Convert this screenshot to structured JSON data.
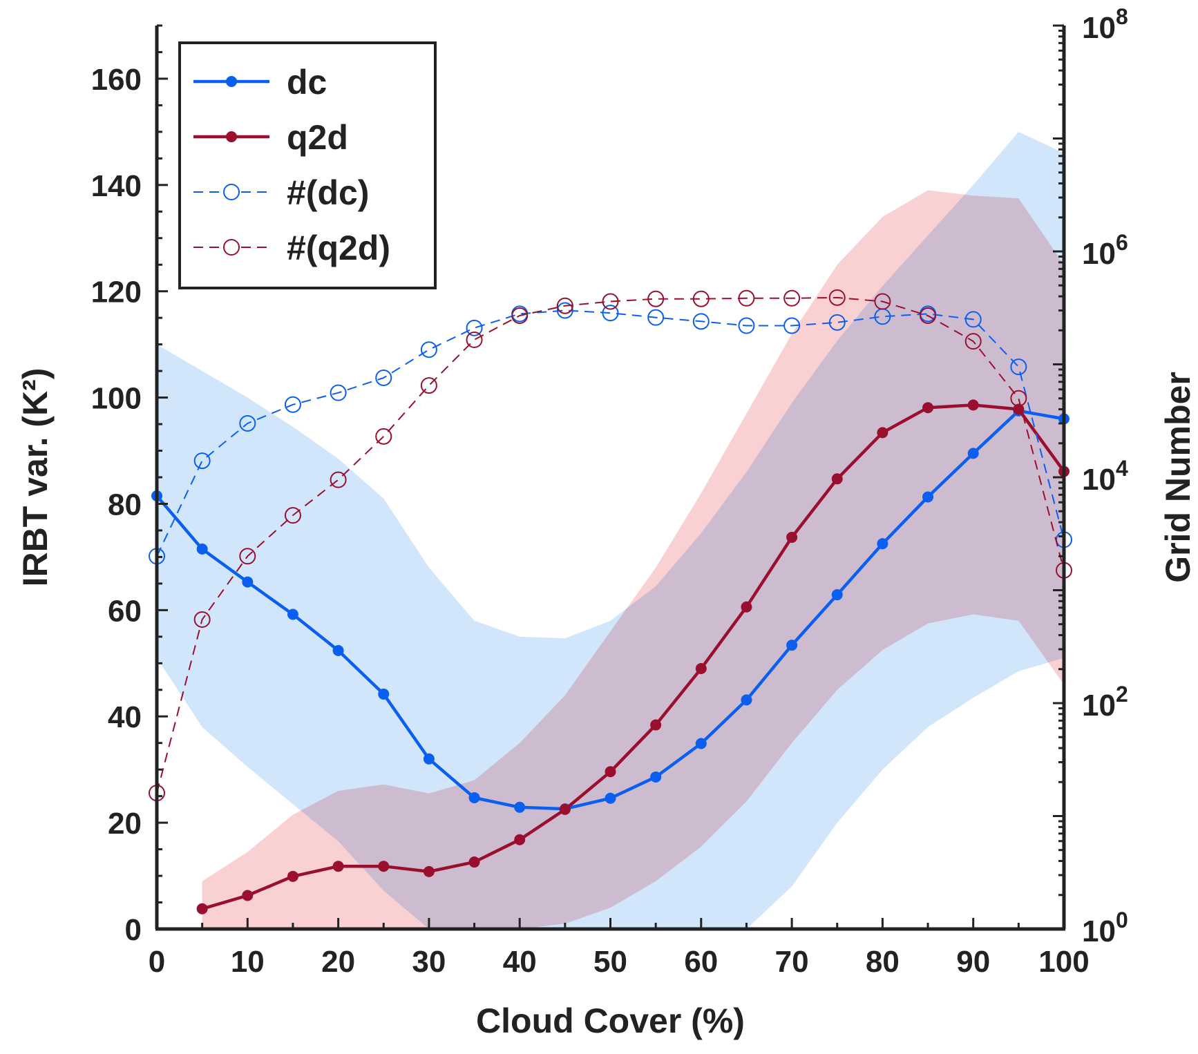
{
  "chart_data": {
    "type": "line",
    "xlabel": "Cloud Cover (%)",
    "ylabel_left": "IRBT var. (K²)",
    "ylabel_right": "Grid Number",
    "xlim": [
      0,
      100
    ],
    "ylim_left": [
      0,
      170
    ],
    "ylim_right": [
      1,
      100000000
    ],
    "right_axis_scale": "log",
    "x_ticks": [
      "0",
      "10",
      "20",
      "30",
      "40",
      "50",
      "60",
      "70",
      "80",
      "90",
      "100"
    ],
    "y_left_ticks": [
      "0",
      "20",
      "40",
      "60",
      "80",
      "100",
      "120",
      "140",
      "160"
    ],
    "y_right_ticks": [
      {
        "base": "10",
        "exp": "0"
      },
      {
        "base": "10",
        "exp": "2"
      },
      {
        "base": "10",
        "exp": "4"
      },
      {
        "base": "10",
        "exp": "6"
      },
      {
        "base": "10",
        "exp": "8"
      }
    ],
    "legend_position": "top-left",
    "grid": false,
    "series": [
      {
        "name": "dc",
        "axis": "left",
        "style": "solid-filled-marker",
        "color": "#0a5ff0",
        "x": [
          0,
          5,
          10,
          15,
          20,
          25,
          30,
          35,
          40,
          45,
          50,
          55,
          60,
          65,
          70,
          75,
          80,
          85,
          90,
          95,
          100
        ],
        "values": [
          81.5,
          71.5,
          65.3,
          59.2,
          52.4,
          44.2,
          32.0,
          24.7,
          22.9,
          22.6,
          24.6,
          28.6,
          34.9,
          43.1,
          53.4,
          62.9,
          72.5,
          81.3,
          89.5,
          97.5,
          96.0
        ]
      },
      {
        "name": "q2d",
        "axis": "left",
        "style": "solid-filled-marker",
        "color": "#9b0f2e",
        "x": [
          5,
          10,
          15,
          20,
          25,
          30,
          35,
          40,
          45,
          50,
          55,
          60,
          65,
          70,
          75,
          80,
          85,
          90,
          95,
          100
        ],
        "values": [
          3.8,
          6.3,
          9.9,
          11.8,
          11.8,
          10.8,
          12.6,
          16.8,
          22.5,
          29.6,
          38.4,
          49.0,
          60.6,
          73.7,
          84.7,
          93.4,
          98.1,
          98.6,
          97.8,
          86.1
        ]
      },
      {
        "name": "#(dc)",
        "axis": "right",
        "style": "dashed-open-marker",
        "color": "#0a5ff0",
        "x": [
          0,
          5,
          10,
          15,
          20,
          25,
          30,
          35,
          40,
          45,
          50,
          55,
          60,
          65,
          70,
          75,
          80,
          85,
          90,
          95,
          100
        ],
        "values": [
          2000,
          14000,
          30000,
          44000,
          56000,
          76000,
          135000,
          210000,
          280000,
          300000,
          285000,
          260000,
          240000,
          220000,
          220000,
          235000,
          265000,
          280000,
          250000,
          95000,
          2800
        ]
      },
      {
        "name": "#(q2d)",
        "axis": "right",
        "style": "dashed-open-marker",
        "color": "#9b0f2e",
        "x": [
          0,
          5,
          10,
          15,
          20,
          25,
          30,
          35,
          40,
          45,
          50,
          55,
          60,
          65,
          70,
          75,
          80,
          85,
          90,
          95,
          100
        ],
        "values": [
          16,
          550,
          2000,
          4600,
          9500,
          23000,
          65000,
          165000,
          270000,
          330000,
          360000,
          380000,
          380000,
          385000,
          385000,
          390000,
          360000,
          270000,
          160000,
          50000,
          1500
        ]
      }
    ],
    "bands": [
      {
        "of": "dc",
        "color": "#cfe5fb",
        "x": [
          0,
          5,
          10,
          15,
          20,
          25,
          30,
          35,
          40,
          45,
          50,
          55,
          60,
          65,
          70,
          75,
          80,
          85,
          90,
          95,
          100
        ],
        "upper": [
          110,
          105,
          100,
          94.5,
          88.5,
          81,
          68,
          58,
          55,
          54.7,
          58,
          64.5,
          74.5,
          86,
          99,
          110.7,
          121,
          130.5,
          140,
          150,
          146
        ],
        "lower": [
          51,
          38,
          30.5,
          23.5,
          16.5,
          7.2,
          0,
          0,
          0,
          0,
          0,
          0,
          0,
          0,
          8,
          20,
          30,
          38,
          43.5,
          48.5,
          51
        ]
      },
      {
        "of": "q2d",
        "color": "#f7b3b5",
        "x": [
          5,
          10,
          15,
          20,
          25,
          30,
          35,
          40,
          45,
          50,
          55,
          60,
          65,
          70,
          75,
          80,
          85,
          90,
          95,
          100
        ],
        "upper": [
          9,
          14.5,
          21.5,
          26,
          27.2,
          25.5,
          28,
          35,
          44,
          56,
          68,
          82,
          97,
          112,
          125,
          134,
          139,
          138,
          137.5,
          125
        ],
        "lower": [
          0,
          0,
          0,
          0,
          0,
          0,
          0,
          0,
          1,
          4,
          9,
          15.5,
          24,
          35,
          45,
          52.5,
          57.5,
          59.2,
          58,
          46
        ]
      }
    ]
  }
}
